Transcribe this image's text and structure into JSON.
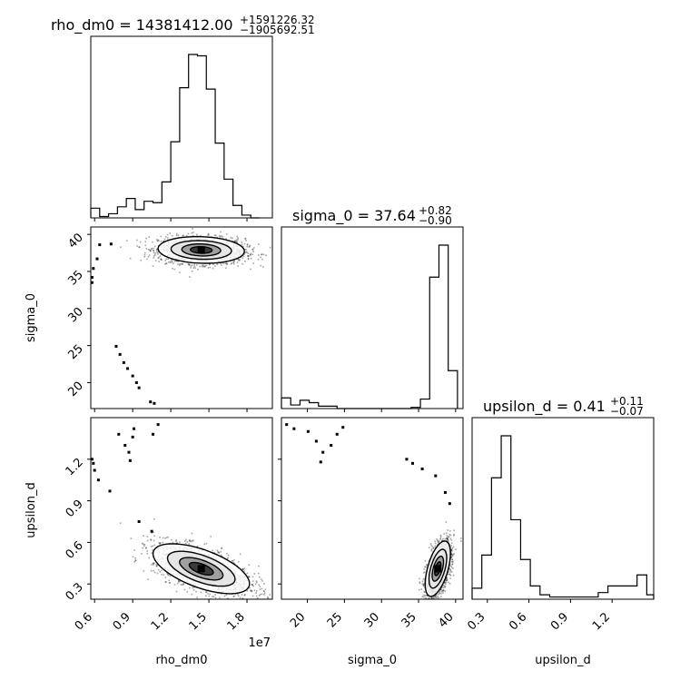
{
  "chart_data": [
    {
      "type": "histogram",
      "panel": "rho_dm0",
      "title_main": "rho_dm0 = 14381412.00",
      "title_sup": "+1591226.32",
      "title_sub": "−1905692.51",
      "xlim": [
        5700000,
        20000000
      ],
      "bins": [
        5700000,
        6400000,
        7100000,
        7800000,
        8500000,
        9200000,
        9900000,
        10600000,
        11300000,
        12000000,
        12700000,
        13400000,
        14100000,
        14800000,
        15500000,
        16200000,
        16900000,
        17600000,
        18300000,
        19000000
      ],
      "counts": [
        7,
        1,
        3,
        8,
        14,
        6,
        12,
        11,
        26,
        55,
        94,
        118,
        117,
        93,
        54,
        28,
        9,
        2,
        0
      ]
    },
    {
      "type": "scatter",
      "panel": "rho_dm0 vs sigma_0",
      "xlim": [
        5700000,
        20000000
      ],
      "ylim": [
        16.5,
        41
      ],
      "ylabel": "sigma_0",
      "yticks": [
        {
          "v": 20,
          "label": "20"
        },
        {
          "v": 25,
          "label": "25"
        },
        {
          "v": 30,
          "label": "30"
        },
        {
          "v": 35,
          "label": "35"
        },
        {
          "v": 40,
          "label": "40"
        }
      ],
      "cluster_center": [
        14400000,
        37.9
      ],
      "cluster_spread": [
        1700000,
        0.9
      ],
      "stray_points": [
        [
          5800000,
          33.5
        ],
        [
          5800000,
          34.2
        ],
        [
          5900000,
          35.4
        ],
        [
          6200000,
          36.7
        ],
        [
          6400000,
          38.6
        ],
        [
          7300000,
          38.7
        ],
        [
          7700000,
          24.9
        ],
        [
          8000000,
          23.8
        ],
        [
          8300000,
          22.7
        ],
        [
          8600000,
          21.9
        ],
        [
          9000000,
          20.9
        ],
        [
          9300000,
          20.0
        ],
        [
          9500000,
          19.3
        ],
        [
          10400000,
          17.4
        ],
        [
          10700000,
          17.2
        ]
      ]
    },
    {
      "type": "histogram",
      "panel": "sigma_0",
      "title_main": "sigma_0 = 37.64",
      "title_sup": "+0.82",
      "title_sub": "−0.90",
      "xlim": [
        16.5,
        41
      ],
      "bins": [
        16.5,
        17.75,
        19.0,
        20.25,
        21.5,
        22.75,
        24.0,
        25.25,
        26.5,
        27.75,
        29.0,
        30.25,
        31.5,
        32.75,
        34.0,
        35.25,
        36.5,
        37.75,
        39.0,
        40.25
      ],
      "counts": [
        9,
        3,
        7,
        5,
        2,
        2,
        0,
        0,
        0,
        0,
        0,
        0,
        0,
        0,
        1,
        8,
        111,
        138,
        32
      ]
    },
    {
      "type": "scatter",
      "panel": "rho_dm0 vs upsilon_d",
      "xlim": [
        5700000,
        20000000
      ],
      "ylim": [
        0.19,
        1.5
      ],
      "ylabel": "upsilon_d",
      "xlabel": "rho_dm0",
      "offset_label": "1e7",
      "xticks": [
        {
          "v": 6000000,
          "label": "0.6"
        },
        {
          "v": 9000000,
          "label": "0.9"
        },
        {
          "v": 12000000,
          "label": "1.2"
        },
        {
          "v": 15000000,
          "label": "1.5"
        },
        {
          "v": 18000000,
          "label": "1.8"
        }
      ],
      "yticks": [
        {
          "v": 0.3,
          "label": "0.3"
        },
        {
          "v": 0.6,
          "label": "0.6"
        },
        {
          "v": 0.9,
          "label": "0.9"
        },
        {
          "v": 1.2,
          "label": "1.2"
        }
      ],
      "cluster_center": [
        14400000,
        0.41
      ],
      "cluster_spread": [
        1900000,
        0.09
      ],
      "stray_points": [
        [
          5800000,
          1.2
        ],
        [
          5900000,
          1.17
        ],
        [
          6000000,
          1.12
        ],
        [
          6300000,
          1.05
        ],
        [
          7200000,
          0.97
        ],
        [
          7900000,
          1.38
        ],
        [
          8400000,
          1.3
        ],
        [
          8700000,
          1.25
        ],
        [
          9000000,
          1.36
        ],
        [
          8800000,
          1.19
        ],
        [
          9100000,
          1.42
        ],
        [
          10600000,
          1.38
        ],
        [
          11000000,
          1.45
        ],
        [
          9500000,
          0.75
        ],
        [
          10500000,
          0.68
        ]
      ]
    },
    {
      "type": "scatter",
      "panel": "sigma_0 vs upsilon_d",
      "xlim": [
        16.5,
        41
      ],
      "ylim": [
        0.19,
        1.5
      ],
      "xlabel": "sigma_0",
      "xticks": [
        {
          "v": 20,
          "label": "20"
        },
        {
          "v": 25,
          "label": "25"
        },
        {
          "v": 30,
          "label": "30"
        },
        {
          "v": 35,
          "label": "35"
        },
        {
          "v": 40,
          "label": "40"
        }
      ],
      "cluster_center": [
        37.6,
        0.41
      ],
      "cluster_spread": [
        0.85,
        0.1
      ],
      "stray_points": [
        [
          17.2,
          1.45
        ],
        [
          18.2,
          1.42
        ],
        [
          20.1,
          1.4
        ],
        [
          21.2,
          1.33
        ],
        [
          22.1,
          1.25
        ],
        [
          23.2,
          1.3
        ],
        [
          24.0,
          1.38
        ],
        [
          24.8,
          1.43
        ],
        [
          21.8,
          1.18
        ],
        [
          33.4,
          1.2
        ],
        [
          34.2,
          1.17
        ],
        [
          35.5,
          1.13
        ],
        [
          37.3,
          1.08
        ],
        [
          38.6,
          0.96
        ],
        [
          39.2,
          0.88
        ]
      ]
    },
    {
      "type": "histogram",
      "panel": "upsilon_d",
      "title_main": "upsilon_d = 0.41",
      "title_sup": "+0.11",
      "title_sub": "−0.07",
      "xlabel": "upsilon_d",
      "xlim": [
        0.19,
        1.5
      ],
      "xticks": [
        {
          "v": 0.3,
          "label": "0.3"
        },
        {
          "v": 0.6,
          "label": "0.6"
        },
        {
          "v": 0.9,
          "label": "0.9"
        },
        {
          "v": 1.2,
          "label": "1.2"
        }
      ],
      "bins": [
        0.19,
        0.26,
        0.33,
        0.4,
        0.47,
        0.54,
        0.61,
        0.68,
        0.75,
        0.82,
        0.89,
        0.96,
        1.03,
        1.1,
        1.17,
        1.24,
        1.31,
        1.38,
        1.45,
        1.5
      ],
      "counts": [
        5,
        20,
        55,
        74,
        36,
        18,
        6,
        2,
        1,
        1,
        1,
        1,
        1,
        3,
        6,
        6,
        6,
        11,
        2
      ]
    }
  ]
}
